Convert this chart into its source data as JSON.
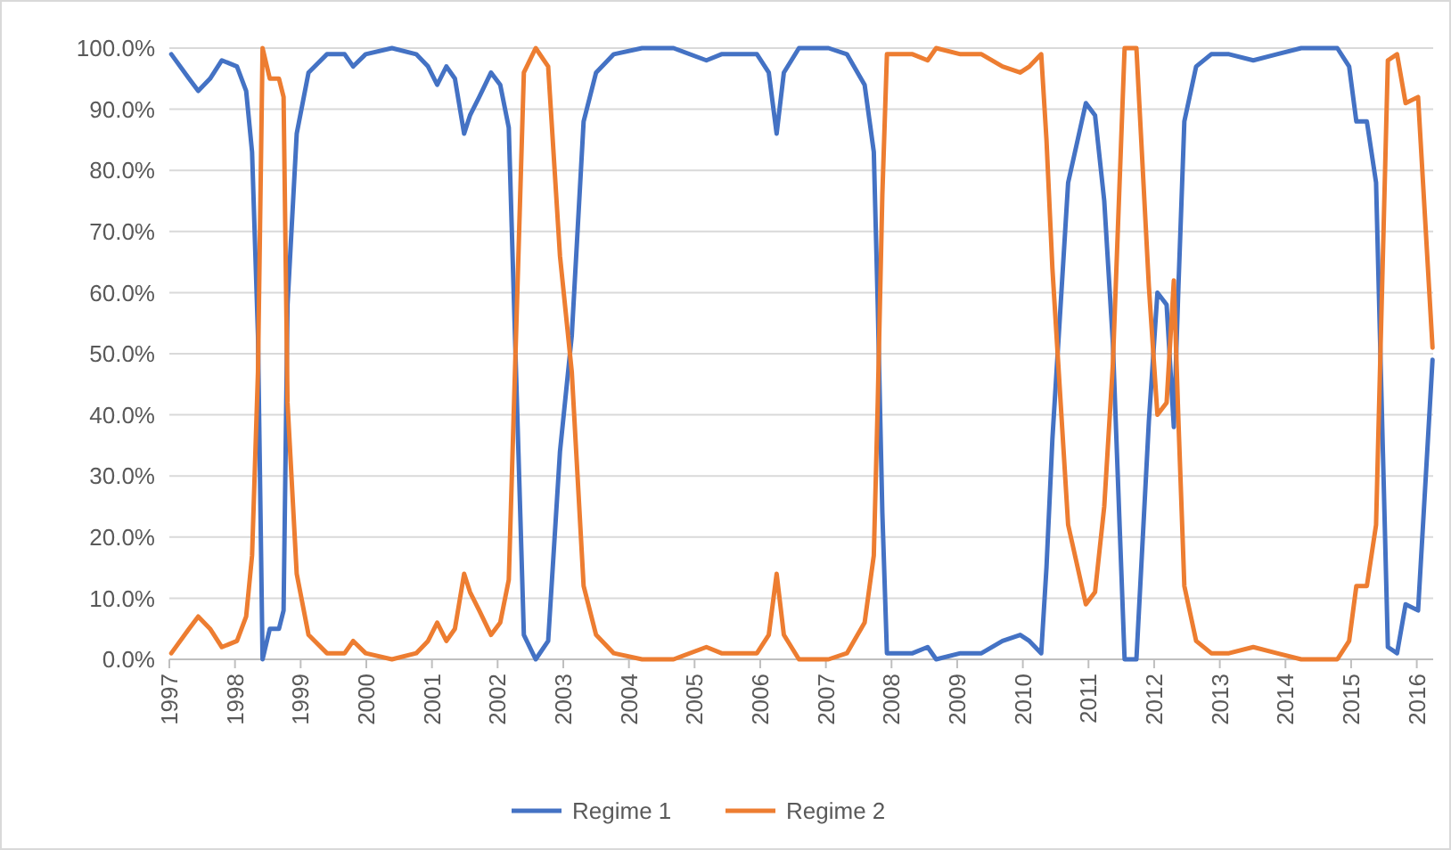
{
  "chart_data": {
    "type": "line",
    "x": [
      1997.03,
      1997.3,
      1997.44,
      1997.62,
      1997.8,
      1998.03,
      1998.17,
      1998.26,
      1998.35,
      1998.42,
      1998.53,
      1998.67,
      1998.74,
      1998.8,
      1998.94,
      1999.12,
      1999.4,
      1999.67,
      1999.8,
      1999.99,
      2000.39,
      2000.76,
      2000.94,
      2001.08,
      2001.22,
      2001.35,
      2001.49,
      2001.58,
      2001.72,
      2001.9,
      2002.04,
      2002.17,
      2002.4,
      2002.58,
      2002.77,
      2002.95,
      2003.13,
      2003.31,
      2003.5,
      2003.77,
      2004.2,
      2004.68,
      2005.18,
      2005.41,
      2005.95,
      2006.13,
      2006.25,
      2006.36,
      2006.59,
      2007.04,
      2007.32,
      2007.59,
      2007.73,
      2007.79,
      2007.86,
      2007.93,
      2008.32,
      2008.55,
      2008.68,
      2009.05,
      2009.37,
      2009.69,
      2009.96,
      2010.1,
      2010.28,
      2010.36,
      2010.45,
      2010.69,
      2010.96,
      2011.1,
      2011.24,
      2011.37,
      2011.55,
      2011.73,
      2011.92,
      2012.05,
      2012.19,
      2012.3,
      2012.37,
      2012.46,
      2012.64,
      2012.87,
      2013.14,
      2013.51,
      2013.87,
      2014.24,
      2014.79,
      2014.97,
      2015.08,
      2015.24,
      2015.38,
      2015.56,
      2015.7,
      2015.83,
      2016.02,
      2016.24
    ],
    "series": [
      {
        "name": "Regime 1",
        "color": "#4472c4",
        "values": [
          99,
          95,
          93,
          95,
          98,
          97,
          93,
          83,
          53,
          0,
          5,
          5,
          8,
          58,
          86,
          96,
          99,
          99,
          97,
          99,
          100,
          99,
          97,
          94,
          97,
          95,
          86,
          89,
          92,
          96,
          94,
          87,
          4,
          0,
          3,
          34,
          53,
          88,
          96,
          99,
          100,
          100,
          98,
          99,
          99,
          96,
          86,
          96,
          100,
          100,
          99,
          94,
          83,
          58,
          24,
          1,
          1,
          2,
          0,
          1,
          1,
          3,
          4,
          3,
          1,
          15,
          36,
          78,
          91,
          89,
          75,
          52,
          0,
          0,
          39,
          60,
          58,
          38,
          61,
          88,
          97,
          99,
          99,
          98,
          99,
          100,
          100,
          97,
          88,
          88,
          78,
          2,
          1,
          9,
          8,
          49
        ]
      },
      {
        "name": "Regime 2",
        "color": "#ed7d31",
        "values": [
          1,
          5,
          7,
          5,
          2,
          3,
          7,
          17,
          47,
          100,
          95,
          95,
          92,
          42,
          14,
          4,
          1,
          1,
          3,
          1,
          0,
          1,
          3,
          6,
          3,
          5,
          14,
          11,
          8,
          4,
          6,
          13,
          96,
          100,
          97,
          66,
          47,
          12,
          4,
          1,
          0,
          0,
          2,
          1,
          1,
          4,
          14,
          4,
          0,
          0,
          1,
          6,
          17,
          42,
          76,
          99,
          99,
          98,
          100,
          99,
          99,
          97,
          96,
          97,
          99,
          85,
          64,
          22,
          9,
          11,
          25,
          48,
          100,
          100,
          61,
          40,
          42,
          62,
          39,
          12,
          3,
          1,
          1,
          2,
          1,
          0,
          0,
          3,
          12,
          12,
          22,
          98,
          99,
          91,
          92,
          51
        ]
      }
    ],
    "xlim": [
      1997,
      2016.25
    ],
    "xticks": [
      1997,
      1998,
      1999,
      2000,
      2001,
      2002,
      2003,
      2004,
      2005,
      2006,
      2007,
      2008,
      2009,
      2010,
      2011,
      2012,
      2013,
      2014,
      2015,
      2016
    ],
    "ylim": [
      0,
      100
    ],
    "yticks": [
      {
        "value": 0,
        "label": "0.0%"
      },
      {
        "value": 10,
        "label": "10.0%"
      },
      {
        "value": 20,
        "label": "20.0%"
      },
      {
        "value": 30,
        "label": "30.0%"
      },
      {
        "value": 40,
        "label": "40.0%"
      },
      {
        "value": 50,
        "label": "50.0%"
      },
      {
        "value": 60,
        "label": "60.0%"
      },
      {
        "value": 70,
        "label": "70.0%"
      },
      {
        "value": 80,
        "label": "80.0%"
      },
      {
        "value": 90,
        "label": "90.0%"
      },
      {
        "value": 100,
        "label": "100.0%"
      }
    ],
    "grid": "y",
    "legend": "bottom",
    "marker": "none",
    "line_style": "solid"
  }
}
